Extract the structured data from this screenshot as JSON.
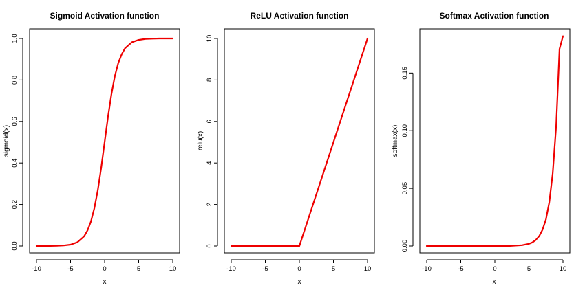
{
  "colors": {
    "curve": "#ee0000",
    "frame": "#000000"
  },
  "chart_data": [
    {
      "type": "line",
      "title": "Sigmoid Activation function",
      "xlabel": "x",
      "ylabel": "sigmoid(x)",
      "xlim": [
        -10,
        10
      ],
      "ylim": [
        0,
        1
      ],
      "xticks": [
        -10,
        -5,
        0,
        5,
        10
      ],
      "yticks": [
        0.0,
        0.2,
        0.4,
        0.6,
        0.8,
        1.0
      ],
      "ytick_labels": [
        "0.0",
        "0.2",
        "0.4",
        "0.6",
        "0.8",
        "1.0"
      ],
      "grid": false,
      "series": [
        {
          "x": [
            -10,
            -9,
            -8,
            -7,
            -6,
            -5,
            -4,
            -3,
            -2.5,
            -2,
            -1.5,
            -1,
            -0.5,
            0,
            0.5,
            1,
            1.5,
            2,
            2.5,
            3,
            4,
            5,
            6,
            7,
            8,
            9,
            10
          ],
          "y": [
            0.0,
            0.0001,
            0.0003,
            0.0009,
            0.0025,
            0.0067,
            0.018,
            0.047,
            0.076,
            0.119,
            0.182,
            0.269,
            0.378,
            0.5,
            0.622,
            0.731,
            0.818,
            0.881,
            0.924,
            0.953,
            0.982,
            0.993,
            0.998,
            0.999,
            1.0,
            1.0,
            1.0
          ]
        }
      ]
    },
    {
      "type": "line",
      "title": "ReLU Activation function",
      "xlabel": "x",
      "ylabel": "relu(x)",
      "xlim": [
        -10,
        10
      ],
      "ylim": [
        0,
        10
      ],
      "xticks": [
        -10,
        -5,
        0,
        5,
        10
      ],
      "yticks": [
        0,
        2,
        4,
        6,
        8,
        10
      ],
      "ytick_labels": [
        "0",
        "2",
        "4",
        "6",
        "8",
        "10"
      ],
      "grid": false,
      "series": [
        {
          "x": [
            -10,
            -5,
            0,
            5,
            10
          ],
          "y": [
            0,
            0,
            0,
            5,
            10
          ]
        }
      ]
    },
    {
      "type": "line",
      "title": "Softmax Activation function",
      "xlabel": "x",
      "ylabel": "softmax(x)",
      "xlim": [
        -10,
        10
      ],
      "ylim": [
        0,
        0.18
      ],
      "xticks": [
        -10,
        -5,
        0,
        5,
        10
      ],
      "yticks": [
        0.0,
        0.05,
        0.1,
        0.15
      ],
      "ytick_labels": [
        "0.00",
        "0.05",
        "0.10",
        "0.15"
      ],
      "grid": false,
      "series": [
        {
          "x": [
            -10,
            -6,
            -2,
            2,
            4,
            5,
            5.5,
            6,
            6.5,
            7,
            7.5,
            8,
            8.5,
            9,
            9.5,
            10
          ],
          "y": [
            0.0,
            0.0,
            0.0,
            0.0,
            0.0007,
            0.0019,
            0.0031,
            0.0052,
            0.0085,
            0.0141,
            0.0232,
            0.0382,
            0.063,
            0.104,
            0.171,
            0.182
          ]
        }
      ]
    }
  ]
}
